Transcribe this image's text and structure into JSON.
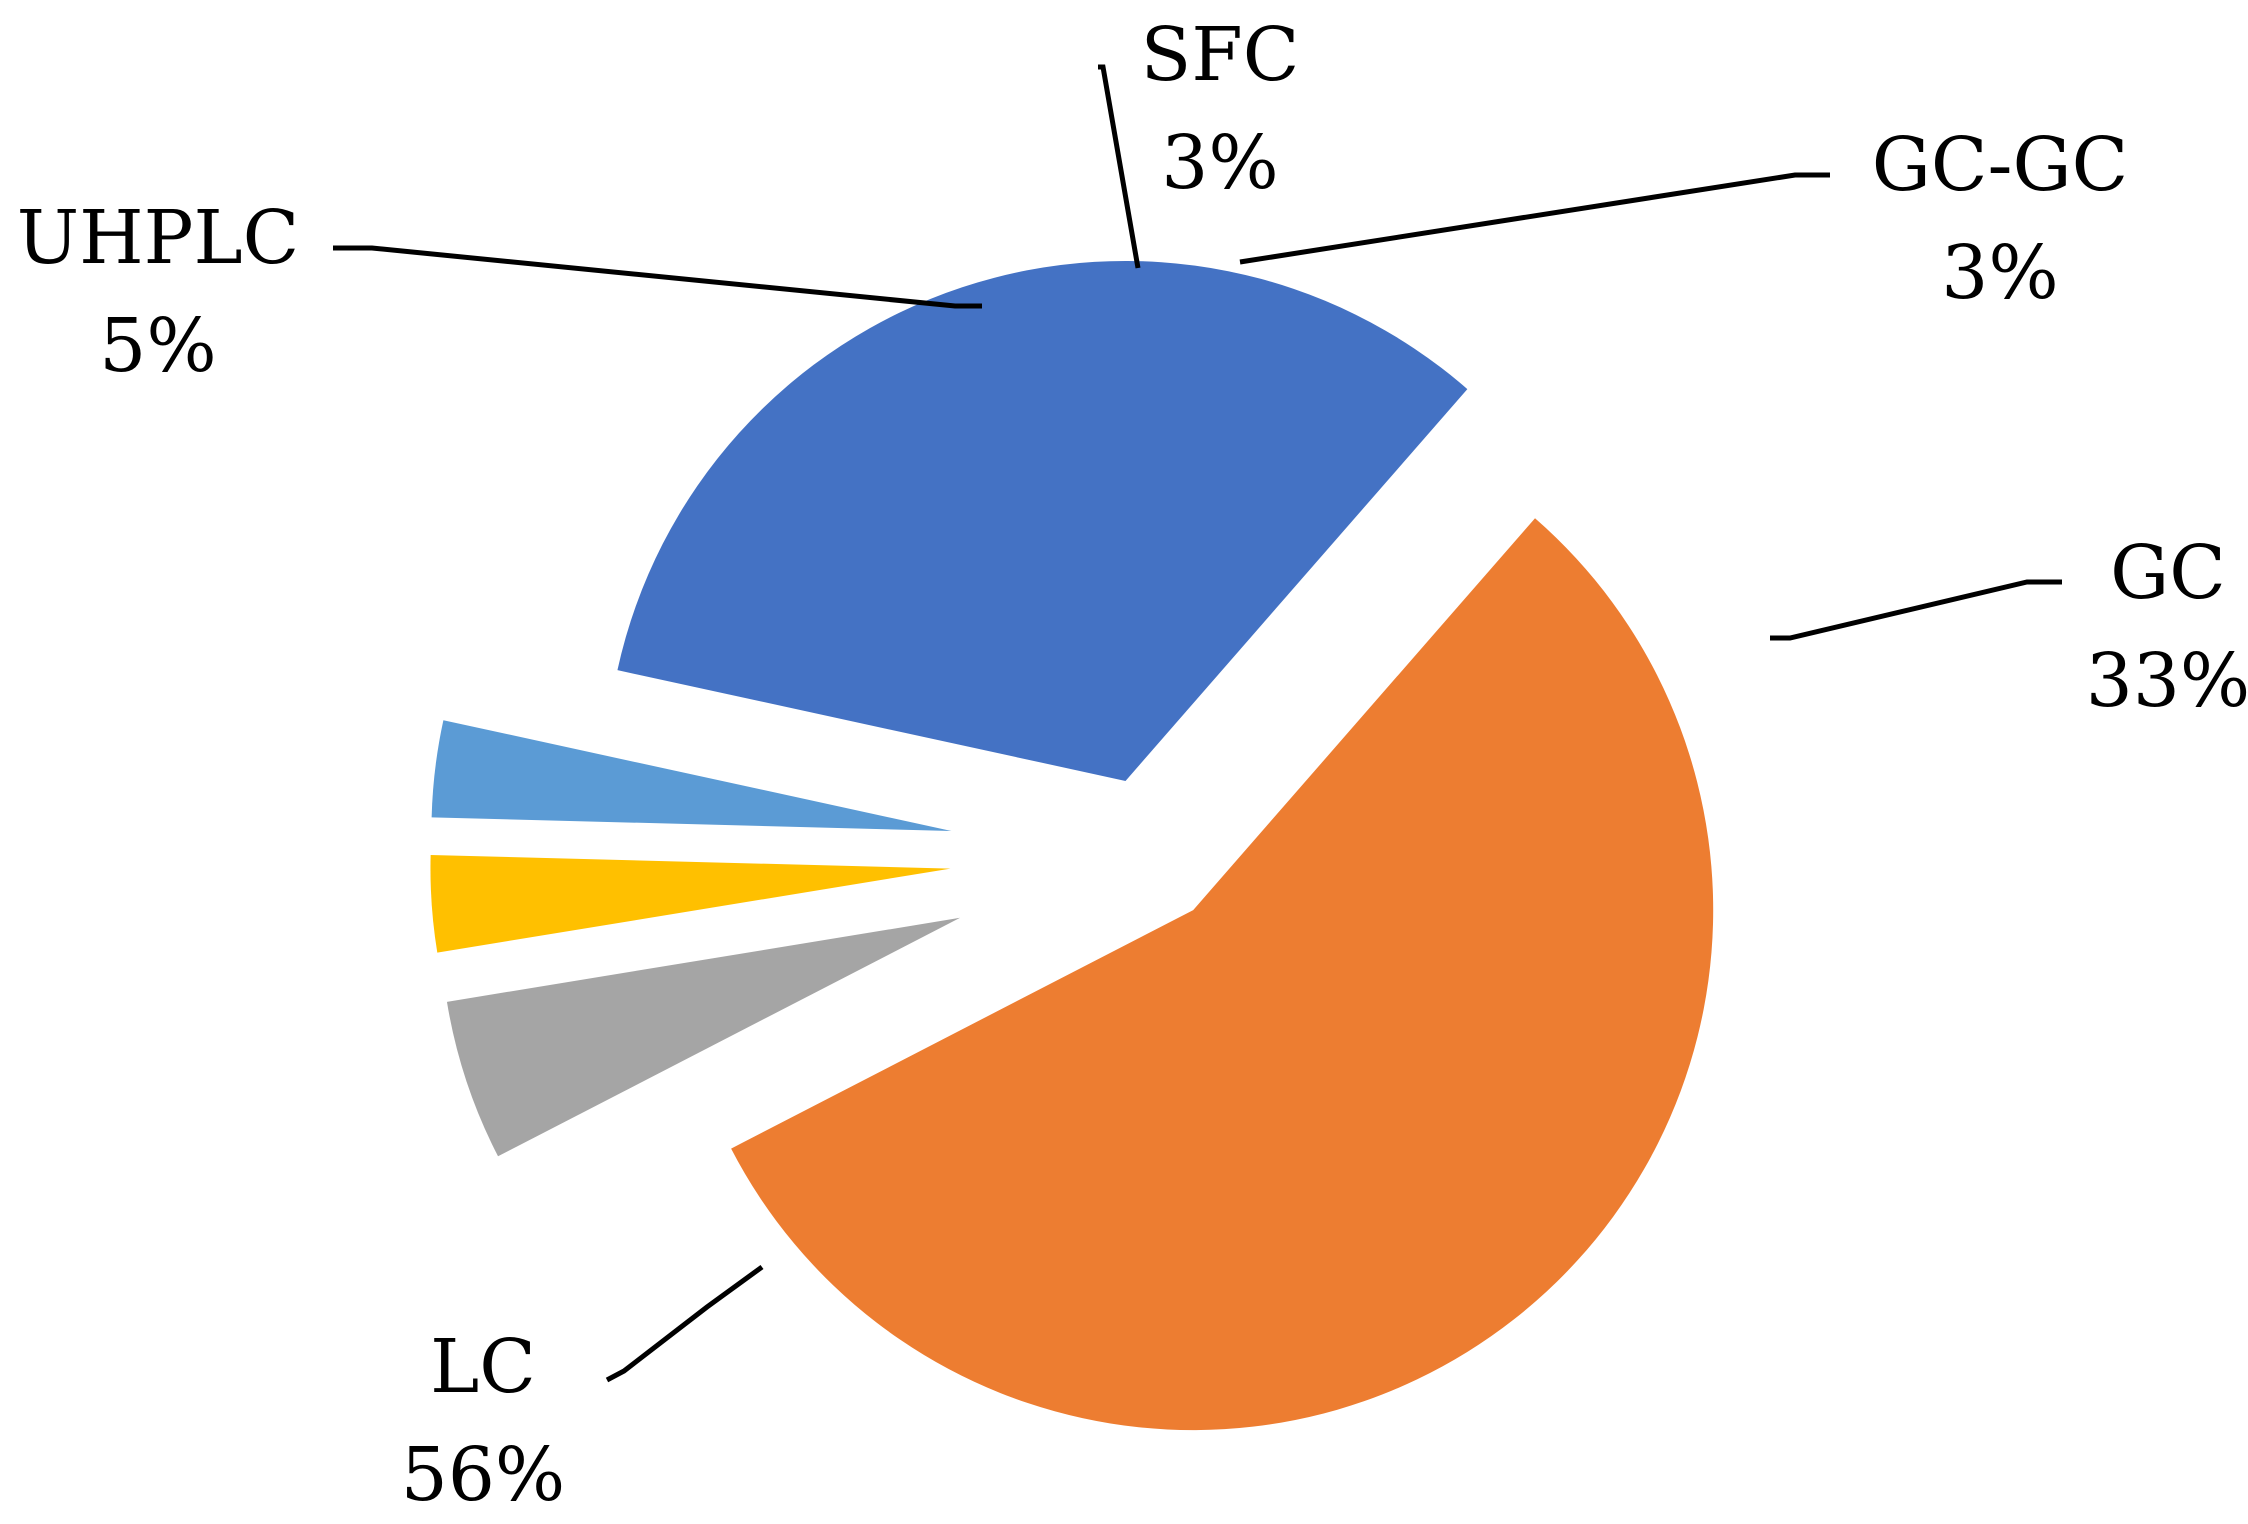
{
  "chart_data": {
    "type": "pie",
    "title": "",
    "slices": [
      {
        "label": "GC-GC",
        "value": 3,
        "display": "3%",
        "color": "#5B9BD5"
      },
      {
        "label": "GC",
        "value": 33,
        "display": "33%",
        "color": "#4472C4"
      },
      {
        "label": "LC",
        "value": 56,
        "display": "56%",
        "color": "#ED7D31"
      },
      {
        "label": "UHPLC",
        "value": 5,
        "display": "5%",
        "color": "#A5A5A5"
      },
      {
        "label": "SFC",
        "value": 3,
        "display": "3%",
        "color": "#FFC000"
      }
    ],
    "exploded": true,
    "legend": "none",
    "data_labels": "outside-with-leader-lines"
  }
}
